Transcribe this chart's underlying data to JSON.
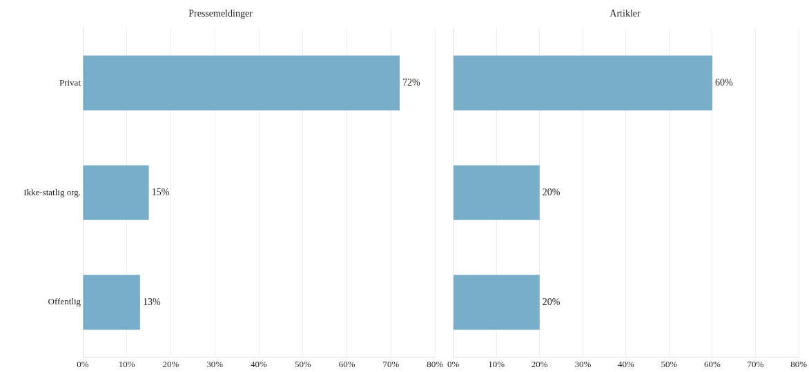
{
  "chart_data": [
    {
      "type": "bar",
      "orientation": "horizontal",
      "title": "Pressemeldinger",
      "categories": [
        "Privat",
        "Ikke-statlig org.",
        "Offentlig"
      ],
      "values": [
        72,
        15,
        13
      ],
      "value_labels": [
        "72%",
        "15%",
        "13%"
      ],
      "color": "#79aeca",
      "xlim": [
        0,
        80
      ],
      "xticks": [
        {
          "value": 0,
          "label": "0%"
        },
        {
          "value": 10,
          "label": "10%"
        },
        {
          "value": 20,
          "label": "20%"
        },
        {
          "value": 30,
          "label": "30%"
        },
        {
          "value": 40,
          "label": "40%"
        },
        {
          "value": 50,
          "label": "50%"
        },
        {
          "value": 60,
          "label": "60%"
        },
        {
          "value": 70,
          "label": "70%"
        },
        {
          "value": 80,
          "label": "80%"
        }
      ],
      "grid": "x",
      "legend": false
    },
    {
      "type": "bar",
      "orientation": "horizontal",
      "title": "Artikler",
      "categories": [
        null,
        null,
        null
      ],
      "values": [
        60,
        20,
        20
      ],
      "value_labels": [
        "60%",
        "20%",
        "20%"
      ],
      "color": "#79aeca",
      "xlim": [
        0,
        80
      ],
      "xticks": [
        {
          "value": 0,
          "label": "0%"
        },
        {
          "value": 10,
          "label": "10%"
        },
        {
          "value": 20,
          "label": "20%"
        },
        {
          "value": 30,
          "label": "30%"
        },
        {
          "value": 40,
          "label": "40%"
        },
        {
          "value": 50,
          "label": "50%"
        },
        {
          "value": 60,
          "label": "60%"
        },
        {
          "value": 70,
          "label": "70%"
        },
        {
          "value": 80,
          "label": "80%"
        }
      ],
      "grid": "x",
      "tick_labels": "x",
      "legend": false
    }
  ]
}
